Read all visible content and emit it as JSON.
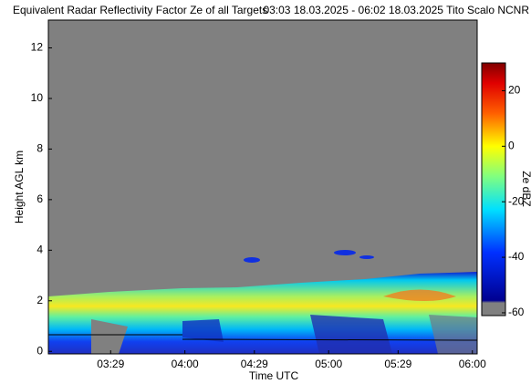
{
  "chart_data": {
    "type": "heatmap",
    "title": "Equivalent Radar Reflectivity Factor Ze of all Targets",
    "subtitle": "03:03 18.03.2025 - 06:02 18.03.2025 Tito Scalo NCNR",
    "xlabel": "Time UTC",
    "ylabel": "Height AGL km",
    "xlim": [
      183,
      362
    ],
    "xticks": [
      {
        "value": 209,
        "label": "03:29"
      },
      {
        "value": 240,
        "label": "04:00"
      },
      {
        "value": 269,
        "label": "04:29"
      },
      {
        "value": 300,
        "label": "05:00"
      },
      {
        "value": 329,
        "label": "05:29"
      },
      {
        "value": 360,
        "label": "06:00"
      }
    ],
    "ylim": [
      -0.1,
      13.1
    ],
    "yticks": [
      0,
      2,
      4,
      6,
      8,
      10,
      12
    ],
    "colorbar": {
      "label": "Ze dBZ",
      "lim": [
        -61,
        30
      ],
      "ticks": [
        20,
        0,
        -20,
        -40,
        -60
      ]
    }
  }
}
